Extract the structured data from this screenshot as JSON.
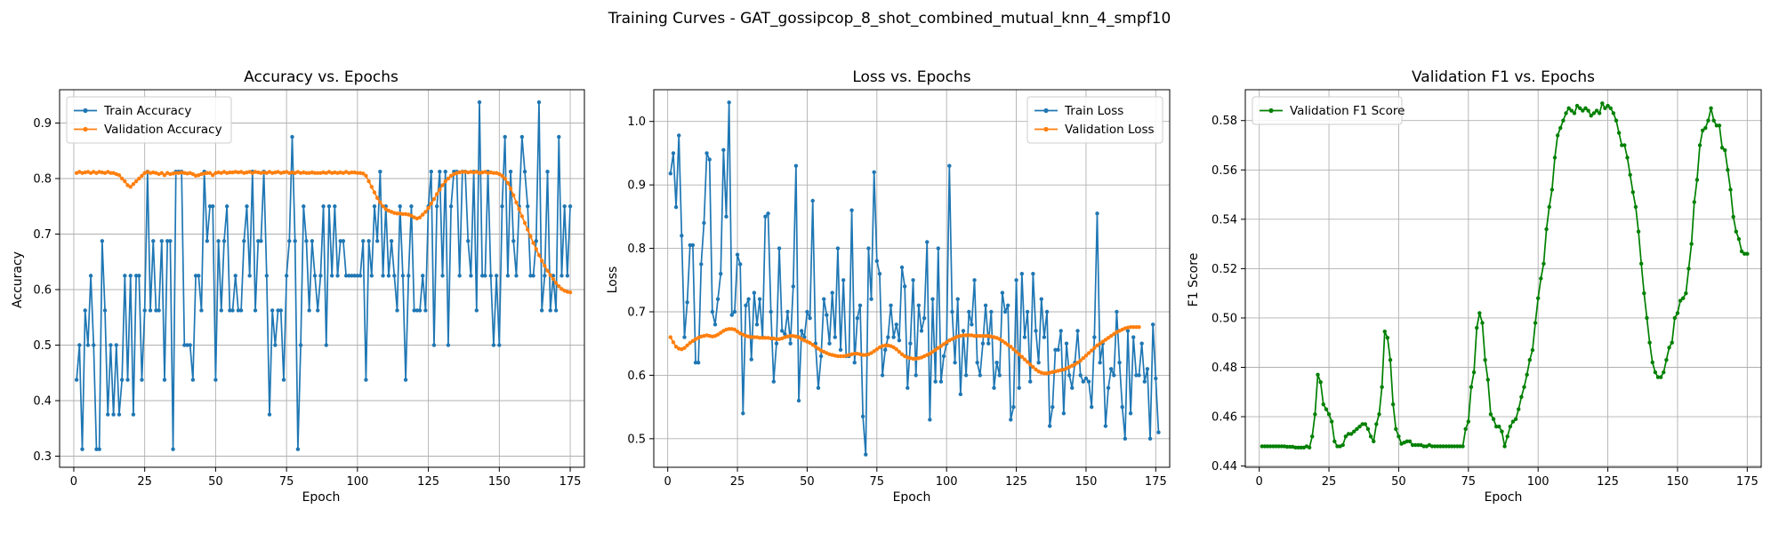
{
  "suptitle": "Training Curves - GAT_gossipcop_8_shot_combined_mutual_knn_4_smpf10",
  "colors": {
    "blue": "#1f77b4",
    "orange": "#ff7f0e",
    "green": "#008000",
    "grid": "#b0b0b0"
  },
  "chart_data": [
    {
      "type": "line",
      "title": "Accuracy vs. Epochs",
      "xlabel": "Epoch",
      "ylabel": "Accuracy",
      "xlim": [
        -5,
        180
      ],
      "ylim": [
        0.28,
        0.96
      ],
      "xticks": [
        0,
        25,
        50,
        75,
        100,
        125,
        150,
        175
      ],
      "yticks": [
        0.3,
        0.4,
        0.5,
        0.6,
        0.7,
        0.8,
        0.9
      ],
      "grid": true,
      "legend_position": "upper-left",
      "series": [
        {
          "name": "Train Accuracy",
          "color": "#1f77b4",
          "x_start": 1,
          "values": [
            0.4375,
            0.5,
            0.3125,
            0.5625,
            0.5,
            0.625,
            0.5,
            0.3125,
            0.3125,
            0.6875,
            0.5625,
            0.375,
            0.5,
            0.375,
            0.5,
            0.375,
            0.4375,
            0.625,
            0.4375,
            0.625,
            0.375,
            0.625,
            0.625,
            0.4375,
            0.5625,
            0.8125,
            0.5625,
            0.6875,
            0.5625,
            0.5625,
            0.6875,
            0.4375,
            0.6875,
            0.6875,
            0.3125,
            0.8125,
            0.8125,
            0.8125,
            0.5,
            0.5,
            0.5,
            0.4375,
            0.625,
            0.625,
            0.5625,
            0.8125,
            0.6875,
            0.75,
            0.75,
            0.4375,
            0.6875,
            0.5625,
            0.6875,
            0.75,
            0.5625,
            0.5625,
            0.625,
            0.5625,
            0.5625,
            0.6875,
            0.75,
            0.625,
            0.8125,
            0.5625,
            0.6875,
            0.6875,
            0.8125,
            0.625,
            0.375,
            0.5625,
            0.5,
            0.5625,
            0.5625,
            0.4375,
            0.625,
            0.6875,
            0.875,
            0.6875,
            0.3125,
            0.5,
            0.75,
            0.6875,
            0.5625,
            0.6875,
            0.625,
            0.5625,
            0.625,
            0.75,
            0.5,
            0.75,
            0.625,
            0.75,
            0.625,
            0.6875,
            0.6875,
            0.625,
            0.625,
            0.625,
            0.625,
            0.625,
            0.625,
            0.6875,
            0.4375,
            0.6875,
            0.625,
            0.75,
            0.6875,
            0.8125,
            0.625,
            0.75,
            0.625,
            0.6875,
            0.625,
            0.5625,
            0.75,
            0.625,
            0.4375,
            0.625,
            0.75,
            0.5625,
            0.5625,
            0.5625,
            0.625,
            0.5625,
            0.75,
            0.8125,
            0.5,
            0.75,
            0.8125,
            0.625,
            0.8125,
            0.5,
            0.75,
            0.8125,
            0.8125,
            0.625,
            0.8125,
            0.8125,
            0.6875,
            0.625,
            0.8125,
            0.5625,
            0.9375,
            0.625,
            0.625,
            0.8125,
            0.625,
            0.5,
            0.625,
            0.5,
            0.75,
            0.875,
            0.625,
            0.8125,
            0.6875,
            0.625,
            0.75,
            0.875,
            0.8125,
            0.75,
            0.625,
            0.625,
            0.6875,
            0.9375,
            0.5625,
            0.625,
            0.8125,
            0.5625,
            0.625,
            0.5625,
            0.875,
            0.625,
            0.75,
            0.625,
            0.75
          ]
        },
        {
          "name": "Validation Accuracy",
          "color": "#ff7f0e",
          "x_start": 1,
          "values": [
            0.81,
            0.812,
            0.81,
            0.811,
            0.812,
            0.81,
            0.812,
            0.81,
            0.812,
            0.811,
            0.81,
            0.812,
            0.81,
            0.81,
            0.808,
            0.806,
            0.8,
            0.795,
            0.788,
            0.785,
            0.79,
            0.795,
            0.8,
            0.805,
            0.81,
            0.812,
            0.81,
            0.811,
            0.81,
            0.808,
            0.81,
            0.806,
            0.81,
            0.808,
            0.809,
            0.81,
            0.81,
            0.811,
            0.81,
            0.809,
            0.81,
            0.808,
            0.805,
            0.806,
            0.808,
            0.809,
            0.81,
            0.81,
            0.806,
            0.81,
            0.811,
            0.81,
            0.812,
            0.81,
            0.811,
            0.811,
            0.812,
            0.811,
            0.812,
            0.81,
            0.811,
            0.812,
            0.81,
            0.812,
            0.811,
            0.81,
            0.811,
            0.81,
            0.812,
            0.81,
            0.811,
            0.812,
            0.81,
            0.811,
            0.812,
            0.81,
            0.811,
            0.81,
            0.812,
            0.81,
            0.811,
            0.81,
            0.81,
            0.811,
            0.81,
            0.81,
            0.81,
            0.811,
            0.81,
            0.812,
            0.81,
            0.811,
            0.81,
            0.811,
            0.81,
            0.812,
            0.81,
            0.811,
            0.811,
            0.81,
            0.81,
            0.809,
            0.805,
            0.795,
            0.785,
            0.775,
            0.765,
            0.757,
            0.75,
            0.745,
            0.742,
            0.74,
            0.738,
            0.737,
            0.737,
            0.736,
            0.736,
            0.735,
            0.733,
            0.73,
            0.728,
            0.73,
            0.735,
            0.74,
            0.747,
            0.755,
            0.763,
            0.772,
            0.78,
            0.788,
            0.795,
            0.8,
            0.805,
            0.808,
            0.81,
            0.811,
            0.812,
            0.812,
            0.811,
            0.812,
            0.811,
            0.812,
            0.81,
            0.811,
            0.812,
            0.81,
            0.811,
            0.81,
            0.81,
            0.808,
            0.805,
            0.8,
            0.792,
            0.782,
            0.77,
            0.757,
            0.745,
            0.732,
            0.72,
            0.708,
            0.696,
            0.684,
            0.673,
            0.662,
            0.652,
            0.643,
            0.634,
            0.626,
            0.619,
            0.612,
            0.606,
            0.601,
            0.598,
            0.596,
            0.595
          ]
        }
      ]
    },
    {
      "type": "line",
      "title": "Loss vs. Epochs",
      "xlabel": "Epoch",
      "ylabel": "Loss",
      "xlim": [
        -5,
        180
      ],
      "ylim": [
        0.455,
        1.05
      ],
      "xticks": [
        0,
        25,
        50,
        75,
        100,
        125,
        150,
        175
      ],
      "yticks": [
        0.5,
        0.6,
        0.7,
        0.8,
        0.9,
        1.0
      ],
      "grid": true,
      "legend_position": "upper-right",
      "series": [
        {
          "name": "Train Loss",
          "color": "#1f77b4",
          "x_start": 1,
          "values": [
            0.918,
            0.95,
            0.865,
            0.978,
            0.82,
            0.66,
            0.715,
            0.805,
            0.805,
            0.62,
            0.62,
            0.775,
            0.84,
            0.95,
            0.94,
            0.7,
            0.68,
            0.72,
            0.76,
            0.955,
            0.85,
            1.03,
            0.695,
            0.7,
            0.79,
            0.775,
            0.54,
            0.71,
            0.72,
            0.625,
            0.73,
            0.68,
            0.72,
            0.66,
            0.85,
            0.855,
            0.7,
            0.59,
            0.65,
            0.8,
            0.67,
            0.665,
            0.7,
            0.65,
            0.74,
            0.93,
            0.56,
            0.67,
            0.66,
            0.7,
            0.69,
            0.875,
            0.65,
            0.58,
            0.63,
            0.72,
            0.695,
            0.65,
            0.73,
            0.66,
            0.8,
            0.64,
            0.75,
            0.63,
            0.63,
            0.86,
            0.62,
            0.69,
            0.71,
            0.535,
            0.475,
            0.8,
            0.72,
            0.92,
            0.78,
            0.76,
            0.6,
            0.64,
            0.66,
            0.71,
            0.66,
            0.68,
            0.655,
            0.77,
            0.74,
            0.58,
            0.65,
            0.75,
            0.6,
            0.71,
            0.67,
            0.69,
            0.81,
            0.53,
            0.72,
            0.59,
            0.8,
            0.59,
            0.63,
            0.65,
            0.93,
            0.7,
            0.62,
            0.72,
            0.57,
            0.67,
            0.6,
            0.7,
            0.68,
            0.75,
            0.62,
            0.6,
            0.65,
            0.71,
            0.65,
            0.7,
            0.58,
            0.62,
            0.6,
            0.73,
            0.7,
            0.71,
            0.53,
            0.55,
            0.75,
            0.58,
            0.76,
            0.66,
            0.7,
            0.59,
            0.76,
            0.67,
            0.62,
            0.72,
            0.66,
            0.7,
            0.52,
            0.55,
            0.64,
            0.64,
            0.67,
            0.54,
            0.65,
            0.6,
            0.58,
            0.62,
            0.67,
            0.6,
            0.59,
            0.595,
            0.59,
            0.55,
            0.66,
            0.855,
            0.62,
            0.65,
            0.52,
            0.58,
            0.61,
            0.6,
            0.7,
            0.62,
            0.55,
            0.5,
            0.67,
            0.54,
            0.66,
            0.6,
            0.6,
            0.65,
            0.59,
            0.61,
            0.5,
            0.68,
            0.595,
            0.51
          ]
        },
        {
          "name": "Validation Loss",
          "color": "#ff7f0e",
          "x_start": 1,
          "values": [
            0.66,
            0.652,
            0.645,
            0.642,
            0.641,
            0.643,
            0.647,
            0.651,
            0.654,
            0.657,
            0.659,
            0.661,
            0.662,
            0.663,
            0.662,
            0.661,
            0.662,
            0.664,
            0.667,
            0.67,
            0.672,
            0.673,
            0.673,
            0.672,
            0.669,
            0.666,
            0.664,
            0.662,
            0.661,
            0.66,
            0.66,
            0.66,
            0.659,
            0.659,
            0.659,
            0.659,
            0.658,
            0.658,
            0.657,
            0.657,
            0.658,
            0.66,
            0.661,
            0.662,
            0.662,
            0.661,
            0.66,
            0.657,
            0.655,
            0.653,
            0.651,
            0.648,
            0.645,
            0.642,
            0.639,
            0.637,
            0.635,
            0.633,
            0.632,
            0.631,
            0.63,
            0.63,
            0.63,
            0.631,
            0.632,
            0.633,
            0.634,
            0.634,
            0.633,
            0.632,
            0.632,
            0.633,
            0.635,
            0.638,
            0.641,
            0.644,
            0.646,
            0.647,
            0.647,
            0.646,
            0.644,
            0.641,
            0.637,
            0.633,
            0.63,
            0.628,
            0.627,
            0.626,
            0.626,
            0.627,
            0.628,
            0.63,
            0.632,
            0.634,
            0.637,
            0.64,
            0.643,
            0.646,
            0.649,
            0.652,
            0.655,
            0.657,
            0.659,
            0.661,
            0.662,
            0.663,
            0.663,
            0.663,
            0.663,
            0.662,
            0.662,
            0.662,
            0.662,
            0.662,
            0.662,
            0.661,
            0.66,
            0.659,
            0.657,
            0.654,
            0.651,
            0.648,
            0.645,
            0.641,
            0.637,
            0.633,
            0.629,
            0.625,
            0.621,
            0.617,
            0.613,
            0.609,
            0.606,
            0.604,
            0.603,
            0.603,
            0.604,
            0.605,
            0.606,
            0.607,
            0.608,
            0.609,
            0.611,
            0.613,
            0.615,
            0.617,
            0.62,
            0.623,
            0.627,
            0.631,
            0.635,
            0.639,
            0.643,
            0.647,
            0.65,
            0.653,
            0.656,
            0.659,
            0.662,
            0.665,
            0.668,
            0.67,
            0.672,
            0.674,
            0.675,
            0.676,
            0.676,
            0.676,
            0.676
          ]
        }
      ]
    },
    {
      "type": "line",
      "title": "Validation F1 vs. Epochs",
      "xlabel": "Epoch",
      "ylabel": "F1 Score",
      "xlim": [
        -5,
        180
      ],
      "ylim": [
        0.4395,
        0.5925
      ],
      "xticks": [
        0,
        25,
        50,
        75,
        100,
        125,
        150,
        175
      ],
      "yticks": [
        0.44,
        0.46,
        0.48,
        0.5,
        0.52,
        0.54,
        0.56,
        0.58
      ],
      "grid": true,
      "legend_position": "upper-left",
      "series": [
        {
          "name": "Validation F1 Score",
          "color": "#008000",
          "x_start": 1,
          "values": [
            0.448,
            0.448,
            0.448,
            0.448,
            0.448,
            0.448,
            0.448,
            0.448,
            0.448,
            0.4478,
            0.4478,
            0.4478,
            0.4475,
            0.4475,
            0.4475,
            0.4475,
            0.448,
            0.4475,
            0.452,
            0.461,
            0.477,
            0.474,
            0.465,
            0.463,
            0.461,
            0.458,
            0.45,
            0.448,
            0.448,
            0.4485,
            0.452,
            0.453,
            0.453,
            0.454,
            0.455,
            0.456,
            0.457,
            0.457,
            0.455,
            0.452,
            0.45,
            0.457,
            0.461,
            0.472,
            0.4945,
            0.492,
            0.483,
            0.465,
            0.455,
            0.452,
            0.449,
            0.4495,
            0.45,
            0.45,
            0.4485,
            0.4485,
            0.4485,
            0.4485,
            0.448,
            0.448,
            0.4485,
            0.448,
            0.448,
            0.448,
            0.448,
            0.448,
            0.448,
            0.448,
            0.448,
            0.448,
            0.448,
            0.448,
            0.448,
            0.455,
            0.458,
            0.472,
            0.478,
            0.496,
            0.502,
            0.498,
            0.483,
            0.475,
            0.461,
            0.459,
            0.456,
            0.456,
            0.454,
            0.448,
            0.452,
            0.456,
            0.458,
            0.459,
            0.463,
            0.468,
            0.472,
            0.477,
            0.483,
            0.487,
            0.498,
            0.508,
            0.516,
            0.522,
            0.536,
            0.545,
            0.552,
            0.565,
            0.574,
            0.577,
            0.58,
            0.583,
            0.585,
            0.584,
            0.583,
            0.586,
            0.585,
            0.584,
            0.585,
            0.584,
            0.582,
            0.583,
            0.584,
            0.583,
            0.587,
            0.585,
            0.586,
            0.585,
            0.583,
            0.58,
            0.575,
            0.57,
            0.57,
            0.565,
            0.558,
            0.551,
            0.545,
            0.535,
            0.522,
            0.51,
            0.5,
            0.49,
            0.482,
            0.478,
            0.476,
            0.476,
            0.478,
            0.483,
            0.488,
            0.49,
            0.5,
            0.502,
            0.507,
            0.508,
            0.51,
            0.52,
            0.53,
            0.547,
            0.556,
            0.57,
            0.576,
            0.577,
            0.58,
            0.585,
            0.58,
            0.578,
            0.578,
            0.569,
            0.568,
            0.56,
            0.552,
            0.541,
            0.535,
            0.532,
            0.527,
            0.526,
            0.526
          ]
        }
      ]
    }
  ]
}
